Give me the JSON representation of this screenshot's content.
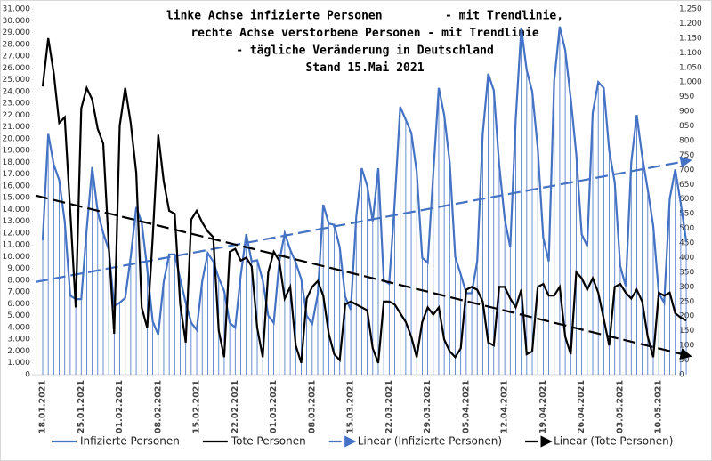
{
  "chart_data": {
    "type": "line",
    "title": [
      "linke Achse infizierte Personen         - mit Trendlinie,",
      "rechte Achse verstorbene Personen - mit Trendlinie",
      "- tägliche Veränderung in Deutschland",
      "Stand 15.Mai 2021"
    ],
    "categories": [
      "18.01.2021",
      null,
      null,
      null,
      null,
      null,
      null,
      "25.01.2021",
      null,
      null,
      null,
      null,
      null,
      null,
      "01.02.2021",
      null,
      null,
      null,
      null,
      null,
      null,
      "08.02.2021",
      null,
      null,
      null,
      null,
      null,
      null,
      "15.02.2021",
      null,
      null,
      null,
      null,
      null,
      null,
      "22.02.2021",
      null,
      null,
      null,
      null,
      null,
      null,
      "01.03.2021",
      null,
      null,
      null,
      null,
      null,
      null,
      "08.03.2021",
      null,
      null,
      null,
      null,
      null,
      null,
      "15.03.2021",
      null,
      null,
      null,
      null,
      null,
      null,
      "22.03.2021",
      null,
      null,
      null,
      null,
      null,
      null,
      "29.03.2021",
      null,
      null,
      null,
      null,
      null,
      null,
      "05.04.2021",
      null,
      null,
      null,
      null,
      null,
      null,
      "12.04.2021",
      null,
      null,
      null,
      null,
      null,
      null,
      "19.04.2021",
      null,
      null,
      null,
      null,
      null,
      null,
      "26.04.2021",
      null,
      null,
      null,
      null,
      null,
      null,
      "03.05.2021",
      null,
      null,
      null,
      null,
      null,
      null,
      "10.05.2021",
      null,
      null,
      null,
      null,
      null
    ],
    "series": [
      {
        "name": "Infizierte Personen",
        "trend_name": "Linear (Infizierte Personen)",
        "color": "#4472c4",
        "axis": "y",
        "drop_lines": true,
        "values": [
          11400,
          20400,
          17800,
          16500,
          13000,
          6700,
          6400,
          6400,
          12300,
          17600,
          13800,
          12000,
          10600,
          5800,
          6100,
          6500,
          10000,
          14200,
          12900,
          9000,
          4500,
          3400,
          7900,
          10200,
          10200,
          8100,
          6100,
          4400,
          3800,
          7900,
          10300,
          9600,
          8200,
          7100,
          4400,
          4000,
          8400,
          11900,
          9600,
          9700,
          8000,
          5000,
          4400,
          9500,
          12000,
          10600,
          9500,
          8100,
          5000,
          4300,
          6800,
          14400,
          12800,
          12700,
          10800,
          6600,
          5500,
          13400,
          17500,
          16000,
          13000,
          17500,
          8000,
          7700,
          14600,
          22700,
          21600,
          20500,
          17200,
          9900,
          9500,
          17000,
          24300,
          22000,
          18000,
          10000,
          8500,
          6900,
          6900,
          9600,
          20400,
          25500,
          24100,
          17800,
          13200,
          10800,
          21700,
          29400,
          25800,
          24000,
          19200,
          11600,
          9600,
          24900,
          29500,
          27500,
          23400,
          18700,
          11900,
          10900,
          22200,
          24800,
          24300,
          19000,
          16300,
          9200,
          7500,
          18000,
          22000,
          18500,
          15700,
          12600,
          6900,
          6100,
          14900,
          17400,
          14500,
          11300
        ]
      },
      {
        "name": "Tote Personen",
        "trend_name": "Linear (Tote Personen)",
        "color": "#000000",
        "axis": "y2",
        "values": [
          985,
          1150,
          1030,
          860,
          880,
          560,
          230,
          910,
          980,
          940,
          840,
          790,
          440,
          140,
          850,
          980,
          860,
          690,
          230,
          160,
          470,
          820,
          660,
          560,
          550,
          240,
          110,
          530,
          560,
          520,
          490,
          470,
          150,
          60,
          420,
          430,
          390,
          400,
          370,
          160,
          60,
          350,
          420,
          390,
          260,
          300,
          100,
          40,
          260,
          300,
          320,
          270,
          140,
          70,
          50,
          240,
          250,
          240,
          230,
          220,
          90,
          40,
          250,
          250,
          240,
          210,
          180,
          130,
          60,
          180,
          230,
          205,
          230,
          120,
          80,
          60,
          90,
          290,
          300,
          290,
          250,
          110,
          100,
          300,
          300,
          260,
          230,
          290,
          70,
          80,
          300,
          310,
          270,
          270,
          300,
          130,
          70,
          350,
          330,
          290,
          330,
          280,
          190,
          100,
          300,
          310,
          280,
          260,
          290,
          250,
          130,
          60,
          280,
          270,
          280,
          210,
          195,
          185
        ]
      }
    ],
    "ylim": [
      0,
      31000
    ],
    "yticks": [
      0,
      {
        "value": 1000,
        "label": "1.000"
      },
      {
        "value": 2000,
        "label": "2.000"
      },
      {
        "value": 3000,
        "label": "3.000"
      },
      {
        "value": 4000,
        "label": "4.000"
      },
      {
        "value": 5000,
        "label": "5.000"
      },
      {
        "value": 6000,
        "label": "6.000"
      },
      {
        "value": 7000,
        "label": "7.000"
      },
      {
        "value": 8000,
        "label": "8.000"
      },
      {
        "value": 9000,
        "label": "9.000"
      },
      {
        "value": 10000,
        "label": "10.000"
      },
      {
        "value": 11000,
        "label": "11.000"
      },
      {
        "value": 12000,
        "label": "12.000"
      },
      {
        "value": 13000,
        "label": "13.000"
      },
      {
        "value": 14000,
        "label": "14.000"
      },
      {
        "value": 15000,
        "label": "15.000"
      },
      {
        "value": 16000,
        "label": "16.000"
      },
      {
        "value": 17000,
        "label": "17.000"
      },
      {
        "value": 18000,
        "label": "18.000"
      },
      {
        "value": 19000,
        "label": "19.000"
      },
      {
        "value": 20000,
        "label": "20.000"
      },
      {
        "value": 21000,
        "label": "21.000"
      },
      {
        "value": 22000,
        "label": "22.000"
      },
      {
        "value": 23000,
        "label": "23.000"
      },
      {
        "value": 24000,
        "label": "24.000"
      },
      {
        "value": 25000,
        "label": "25.000"
      },
      {
        "value": 26000,
        "label": "26.000"
      },
      {
        "value": 27000,
        "label": "27.000"
      },
      {
        "value": 28000,
        "label": "28.000"
      },
      {
        "value": 29000,
        "label": "29.000"
      },
      {
        "value": 30000,
        "label": "30.000"
      },
      {
        "value": 31000,
        "label": "31.000"
      }
    ],
    "y2lim": [
      0,
      1250
    ],
    "y2ticks": [
      0,
      50,
      100,
      150,
      200,
      250,
      300,
      350,
      400,
      450,
      500,
      550,
      600,
      650,
      700,
      750,
      800,
      850,
      900,
      950,
      {
        "value": 1000,
        "label": "1.000"
      },
      {
        "value": 1050,
        "label": "1.050"
      },
      {
        "value": 1100,
        "label": "1.100"
      },
      {
        "value": 1150,
        "label": "1.150"
      },
      {
        "value": 1200,
        "label": "1.200"
      },
      {
        "value": 1250,
        "label": "1.250"
      }
    ],
    "grid": false,
    "legend": "bottom"
  }
}
